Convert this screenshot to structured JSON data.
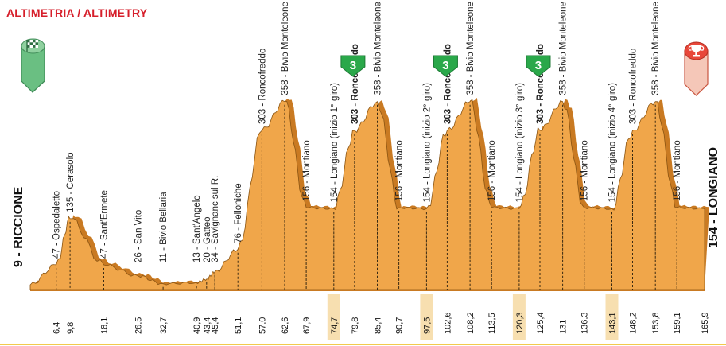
{
  "title": "ALTIMETRIA / ALTIMETRY",
  "start_label": "9 - RICCIONE",
  "finish_label": "154 - LONGIANO",
  "icons": {
    "start": "checkered-flag-icon",
    "finish": "trophy-icon"
  },
  "colors": {
    "title": "#d61f2b",
    "profile_fill": "#f0a64a",
    "profile_dark": "#c97a22",
    "start_marker": "#6abf82",
    "finish_marker": "#e8473a",
    "kom_badge": "#2aa84a",
    "highlight": "#f7dfb0"
  },
  "chart_data": {
    "type": "area",
    "title": "ALTIMETRIA / ALTIMETRY",
    "x_unit": "km",
    "xlim": [
      0,
      165.9
    ],
    "waypoints": [
      {
        "km": 0,
        "alt": 9,
        "name": "RICCIONE",
        "endpoint": true
      },
      {
        "km": 6.4,
        "alt": 47,
        "name": "Ospedaletto"
      },
      {
        "km": 9.8,
        "alt": 135,
        "name": "Cerasolo"
      },
      {
        "km": 18.1,
        "alt": 47,
        "name": "Sant'Ermete"
      },
      {
        "km": 26.5,
        "alt": 26,
        "name": "San Vito"
      },
      {
        "km": 32.7,
        "alt": 11,
        "name": "Bivio Bellaria"
      },
      {
        "km": 40.9,
        "alt": 13,
        "name": "Sant'Angelo"
      },
      {
        "km": 43.4,
        "alt": 20,
        "name": "Gatteo"
      },
      {
        "km": 45.4,
        "alt": 34,
        "name": "Savignanc sul R."
      },
      {
        "km": 51.1,
        "alt": 76,
        "name": "Felloniche"
      },
      {
        "km": 57.0,
        "alt": 303,
        "name": "Roncofreddo"
      },
      {
        "km": 62.6,
        "alt": 358,
        "name": "Bivio Monteleone"
      },
      {
        "km": 67.9,
        "alt": 156,
        "name": "Montiano"
      },
      {
        "km": 74.7,
        "alt": 154,
        "name": "Longiano (inizio 1° giro)",
        "highlight": true
      },
      {
        "km": 79.8,
        "alt": 303,
        "name": "Roncofreddo",
        "kom": "3",
        "bold": true
      },
      {
        "km": 85.4,
        "alt": 358,
        "name": "Bivio Monteleone"
      },
      {
        "km": 90.7,
        "alt": 156,
        "name": "Montiano"
      },
      {
        "km": 97.5,
        "alt": 154,
        "name": "Longiano (inizio 2° giro)",
        "highlight": true
      },
      {
        "km": 102.6,
        "alt": 303,
        "name": "Roncofreddo",
        "kom": "3",
        "bold": true
      },
      {
        "km": 108.2,
        "alt": 358,
        "name": "Bivio Monteleone"
      },
      {
        "km": 113.5,
        "alt": 156,
        "name": "Montiano"
      },
      {
        "km": 120.3,
        "alt": 154,
        "name": "Longiano (inizio 3° giro)",
        "highlight": true
      },
      {
        "km": 125.4,
        "alt": 303,
        "name": "Roncofreddo",
        "kom": "3",
        "bold": true
      },
      {
        "km": 131.0,
        "alt": 358,
        "name": "Bivio Monteleone"
      },
      {
        "km": 136.3,
        "alt": 156,
        "name": "Montiano"
      },
      {
        "km": 143.1,
        "alt": 154,
        "name": "Longiano (inizio 4° giro)",
        "highlight": true
      },
      {
        "km": 148.2,
        "alt": 303,
        "name": "Roncofreddo"
      },
      {
        "km": 153.8,
        "alt": 358,
        "name": "Bivio Monteleone"
      },
      {
        "km": 159.1,
        "alt": 156,
        "name": "Montiano"
      },
      {
        "km": 165.9,
        "alt": 154,
        "name": "LONGIANO",
        "endpoint": true
      }
    ]
  }
}
